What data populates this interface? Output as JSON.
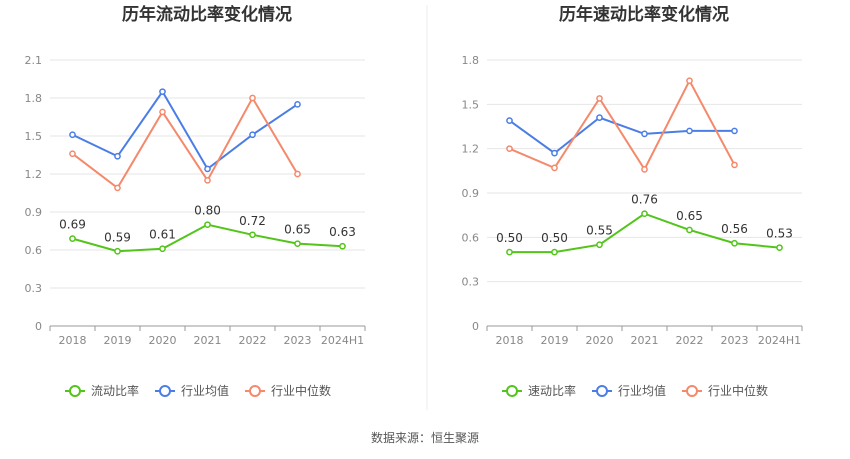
{
  "source_text": "数据来源：恒生聚源",
  "chart_data": [
    {
      "type": "line",
      "title": "历年流动比率变化情况",
      "categories": [
        "2018",
        "2019",
        "2020",
        "2021",
        "2022",
        "2023",
        "2024H1"
      ],
      "ylim": [
        0,
        2.1
      ],
      "yticks": [
        "0",
        "0.3",
        "0.6",
        "0.9",
        "1.2",
        "1.5",
        "1.8",
        "2.1"
      ],
      "grid": true,
      "legend_position": "bottom",
      "series": [
        {
          "name": "流动比率",
          "color": "#52c41a",
          "values": [
            0.69,
            0.59,
            0.61,
            0.8,
            0.72,
            0.65,
            0.63
          ],
          "labels": [
            "0.69",
            "0.59",
            "0.61",
            "0.80",
            "0.72",
            "0.65",
            "0.63"
          ]
        },
        {
          "name": "行业均值",
          "color": "#4a7ee6",
          "values": [
            1.51,
            1.34,
            1.85,
            1.24,
            1.51,
            1.75,
            null
          ]
        },
        {
          "name": "行业中位数",
          "color": "#f4896b",
          "values": [
            1.36,
            1.09,
            1.69,
            1.15,
            1.8,
            1.2,
            null
          ]
        }
      ]
    },
    {
      "type": "line",
      "title": "历年速动比率变化情况",
      "categories": [
        "2018",
        "2019",
        "2020",
        "2021",
        "2022",
        "2023",
        "2024H1"
      ],
      "ylim": [
        0,
        1.8
      ],
      "yticks": [
        "0",
        "0.3",
        "0.6",
        "0.9",
        "1.2",
        "1.5",
        "1.8"
      ],
      "grid": true,
      "legend_position": "bottom",
      "series": [
        {
          "name": "速动比率",
          "color": "#52c41a",
          "values": [
            0.5,
            0.5,
            0.55,
            0.76,
            0.65,
            0.56,
            0.53
          ],
          "labels": [
            "0.50",
            "0.50",
            "0.55",
            "0.76",
            "0.65",
            "0.56",
            "0.53"
          ]
        },
        {
          "name": "行业均值",
          "color": "#4a7ee6",
          "values": [
            1.39,
            1.17,
            1.41,
            1.3,
            1.32,
            1.32,
            null
          ]
        },
        {
          "name": "行业中位数",
          "color": "#f4896b",
          "values": [
            1.2,
            1.07,
            1.54,
            1.06,
            1.66,
            1.09,
            null
          ]
        }
      ]
    }
  ]
}
